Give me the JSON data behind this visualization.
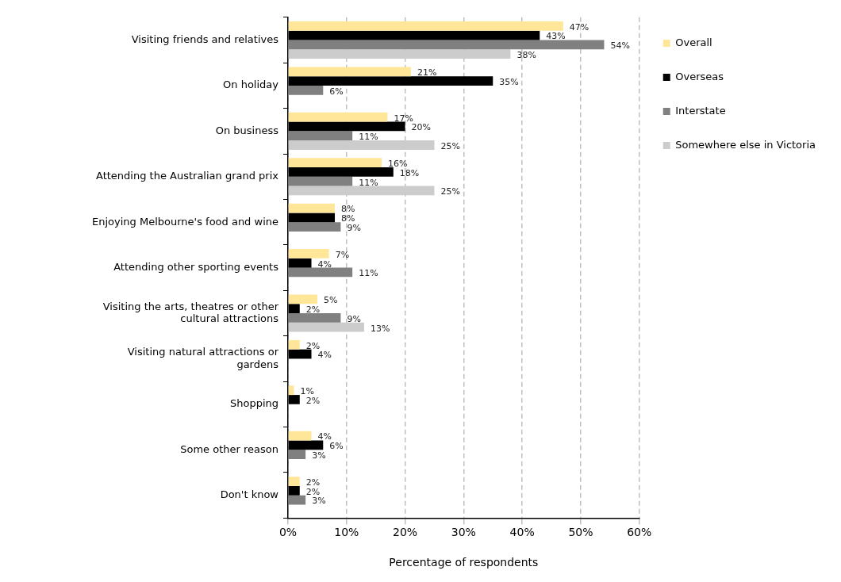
{
  "chart_data": {
    "type": "bar",
    "orientation": "horizontal",
    "xlabel": "Percentage of respondents",
    "categories": [
      "Visiting friends and relatives",
      "On holiday",
      "On business",
      "Attending the Australian grand prix",
      "Enjoying Melbourne's food and wine",
      "Attending other sporting events",
      "Visiting the arts, theatres or other cultural attractions",
      "Visiting natural attractions or gardens",
      "Shopping",
      "Some other reason",
      "Don't know"
    ],
    "series": [
      {
        "name": "Overall",
        "color": "#ffe699",
        "values": [
          47,
          21,
          17,
          16,
          8,
          7,
          5,
          2,
          1,
          4,
          2
        ],
        "value_labels": [
          "47%",
          "21%",
          "17%",
          "16%",
          "8%",
          "7%",
          "5%",
          "2%",
          "1%",
          "4%",
          "2%"
        ]
      },
      {
        "name": "Overseas",
        "color": "#000000",
        "values": [
          43,
          35,
          20,
          18,
          8,
          4,
          2,
          4,
          2,
          6,
          2
        ],
        "value_labels": [
          "43%",
          "35%",
          "20%",
          "18%",
          "8%",
          "4%",
          "2%",
          "4%",
          "2%",
          "6%",
          "2%"
        ]
      },
      {
        "name": "Interstate",
        "color": "#808080",
        "values": [
          54,
          6,
          11,
          11,
          9,
          11,
          9,
          null,
          null,
          3,
          3
        ],
        "value_labels": [
          "54%",
          "6%",
          "11%",
          "11%",
          "9%",
          "11%",
          "9%",
          null,
          null,
          "3%",
          "3%"
        ]
      },
      {
        "name": "Somewhere else in Victoria",
        "color": "#cccccc",
        "values": [
          38,
          null,
          25,
          25,
          null,
          null,
          13,
          null,
          null,
          null,
          null
        ],
        "value_labels": [
          "38%",
          null,
          "25%",
          "25%",
          null,
          null,
          "13%",
          null,
          null,
          null,
          null
        ]
      }
    ],
    "xlim": [
      0,
      60
    ],
    "xticks": [
      {
        "value": 0,
        "label": "0%"
      },
      {
        "value": 10,
        "label": "10%"
      },
      {
        "value": 20,
        "label": "20%"
      },
      {
        "value": 30,
        "label": "30%"
      },
      {
        "value": 40,
        "label": "40%"
      },
      {
        "value": 50,
        "label": "50%"
      },
      {
        "value": 60,
        "label": "60%"
      }
    ],
    "grid": "x",
    "legend": "right"
  }
}
